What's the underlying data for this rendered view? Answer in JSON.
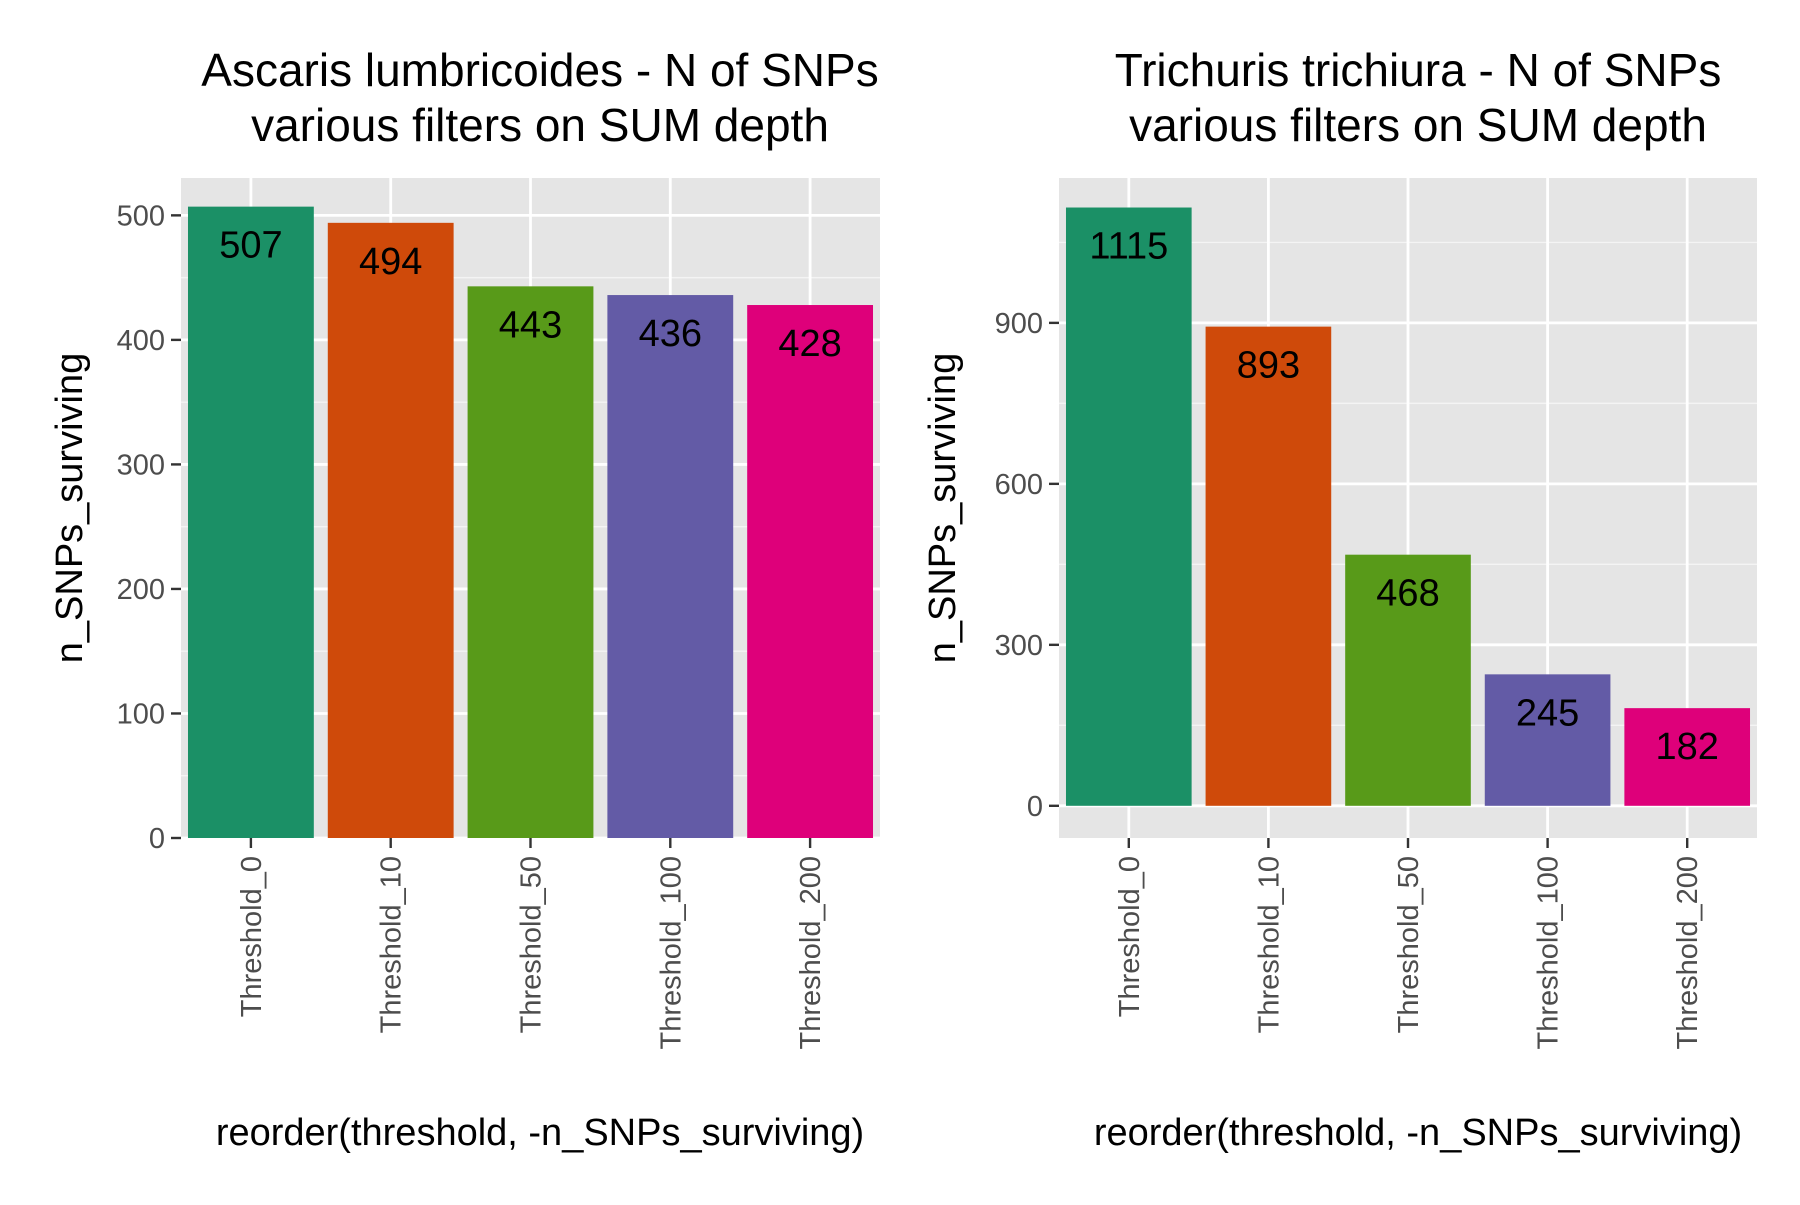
{
  "chart_data": [
    {
      "type": "bar",
      "title_lines": [
        "Ascaris lumbricoides - N of SNPs",
        "various filters on SUM depth"
      ],
      "xlabel": "reorder(threshold, -n_SNPs_surviving)",
      "ylabel": "n_SNPs_surviving",
      "categories": [
        "Threshold_0",
        "Threshold_10",
        "Threshold_50",
        "Threshold_100",
        "Threshold_200"
      ],
      "values": [
        507,
        494,
        443,
        436,
        428
      ],
      "data_labels": [
        "507",
        "494",
        "443",
        "436",
        "428"
      ],
      "colors": [
        "#1b9066",
        "#cf4a0a",
        "#589a19",
        "#635ba6",
        "#de007a"
      ],
      "ylim": [
        0,
        530
      ],
      "yticks": [
        0,
        100,
        200,
        300,
        400,
        500
      ],
      "ytick_labels": [
        "0",
        "100",
        "200",
        "300",
        "400",
        "500"
      ],
      "grid": true,
      "panel_background": "#e5e5e5"
    },
    {
      "type": "bar",
      "title_lines": [
        "Trichuris trichiura - N of SNPs",
        "various filters on SUM  depth"
      ],
      "xlabel": "reorder(threshold, -n_SNPs_surviving)",
      "ylabel": "n_SNPs_surviving",
      "categories": [
        "Threshold_0",
        "Threshold_10",
        "Threshold_50",
        "Threshold_100",
        "Threshold_200"
      ],
      "values": [
        1115,
        893,
        468,
        245,
        182
      ],
      "data_labels": [
        "1115",
        "893",
        "468",
        "245",
        "182"
      ],
      "colors": [
        "#1b9066",
        "#cf4a0a",
        "#589a19",
        "#635ba6",
        "#de007a"
      ],
      "ylim": [
        -60,
        1170
      ],
      "yticks": [
        0,
        300,
        600,
        900
      ],
      "ytick_labels": [
        "0",
        "300",
        "600",
        "900"
      ],
      "grid": true,
      "panel_background": "#e5e5e5"
    }
  ]
}
